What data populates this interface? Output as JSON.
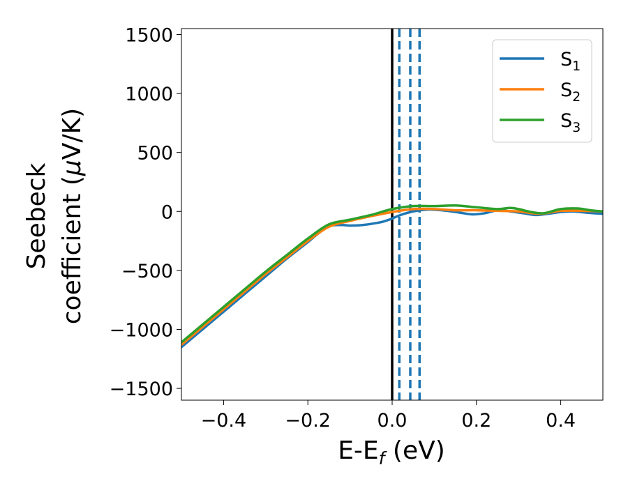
{
  "chart_data": {
    "type": "line",
    "xlabel": "E-E",
    "xlabel_sub": "f",
    "xlabel_unit": " (eV)",
    "ylabel_line1": "Seebeck",
    "ylabel_line2": "coefficient  (",
    "ylabel_mu": "μ",
    "ylabel_unit": "V/K)",
    "xlim": [
      -0.5,
      0.5
    ],
    "ylim": [
      -1600,
      1550
    ],
    "x_ticks": [
      -0.4,
      -0.2,
      0.0,
      0.2,
      0.4
    ],
    "x_tick_labels": [
      "−0.4",
      "−0.2",
      "0.0",
      "0.2",
      "0.4"
    ],
    "y_ticks": [
      -1500,
      -1000,
      -500,
      0,
      500,
      1000,
      1500
    ],
    "y_tick_labels": [
      "−1500",
      "−1000",
      "−500",
      "0",
      "500",
      "1000",
      "1500"
    ],
    "grid": false,
    "legend_position": "top-right",
    "vertical_lines": [
      {
        "x": 0.0,
        "style": "solid",
        "color": "#000000"
      },
      {
        "x": 0.017,
        "style": "dashed",
        "color": "#1f77b4"
      },
      {
        "x": 0.043,
        "style": "dashed",
        "color": "#1f77b4"
      },
      {
        "x": 0.065,
        "style": "dashed",
        "color": "#1f77b4"
      }
    ],
    "series": [
      {
        "name": "S",
        "name_sub": "1",
        "color": "#1f77b4",
        "x": [
          -0.5,
          -0.45,
          -0.4,
          -0.35,
          -0.3,
          -0.25,
          -0.2,
          -0.18,
          -0.15,
          -0.12,
          -0.1,
          -0.07,
          -0.04,
          -0.02,
          0.0,
          0.02,
          0.05,
          0.08,
          0.1,
          0.13,
          0.16,
          0.19,
          0.22,
          0.25,
          0.28,
          0.31,
          0.34,
          0.37,
          0.4,
          0.43,
          0.46,
          0.5
        ],
        "y": [
          -1150,
          -1000,
          -850,
          -700,
          -550,
          -400,
          -260,
          -200,
          -125,
          -115,
          -120,
          -115,
          -100,
          -85,
          -60,
          -30,
          0,
          15,
          15,
          5,
          -10,
          -25,
          -15,
          10,
          0,
          -15,
          -30,
          -20,
          -5,
          0,
          -10,
          -20
        ]
      },
      {
        "name": "S",
        "name_sub": "2",
        "color": "#ff7f0e",
        "x": [
          -0.5,
          -0.45,
          -0.4,
          -0.35,
          -0.3,
          -0.25,
          -0.2,
          -0.15,
          -0.1,
          -0.05,
          0.0,
          0.05,
          0.1,
          0.15,
          0.2,
          0.25,
          0.3,
          0.35,
          0.4,
          0.45,
          0.5
        ],
        "y": [
          -1130,
          -980,
          -830,
          -680,
          -530,
          -390,
          -250,
          -130,
          -80,
          -40,
          -5,
          20,
          20,
          10,
          10,
          5,
          0,
          -20,
          5,
          5,
          0
        ]
      },
      {
        "name": "S",
        "name_sub": "3",
        "color": "#2ca02c",
        "x": [
          -0.5,
          -0.45,
          -0.4,
          -0.35,
          -0.3,
          -0.25,
          -0.2,
          -0.15,
          -0.1,
          -0.05,
          0.0,
          0.05,
          0.1,
          0.15,
          0.2,
          0.25,
          0.28,
          0.3,
          0.33,
          0.36,
          0.4,
          0.44,
          0.47,
          0.5
        ],
        "y": [
          -1110,
          -960,
          -810,
          -660,
          -510,
          -370,
          -230,
          -110,
          -70,
          -30,
          20,
          45,
          45,
          50,
          35,
          20,
          30,
          20,
          -5,
          -15,
          20,
          25,
          10,
          0
        ]
      }
    ]
  }
}
